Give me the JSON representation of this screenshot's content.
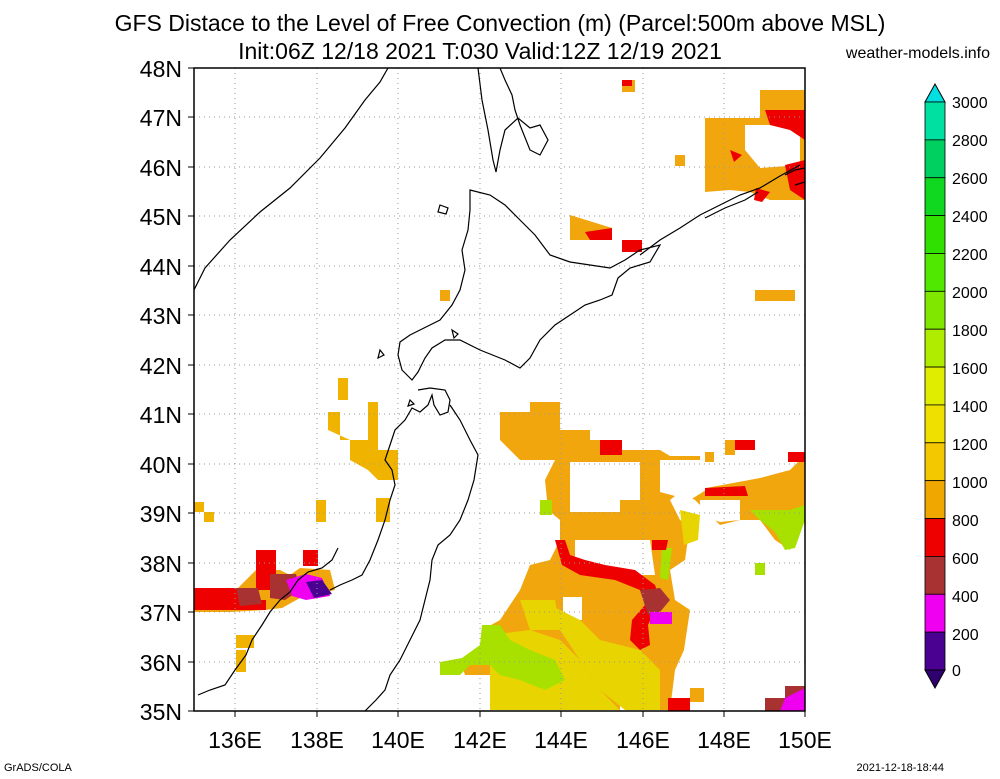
{
  "header": {
    "title": "GFS Distace to the Level of Free Convection (m) (Parcel:500m above MSL)",
    "subtitle": "Init:06Z 12/18 2021 T:030 Valid:12Z 12/19 2021",
    "site": "weather-models.info"
  },
  "footer": {
    "left": "GrADS/COLA",
    "right": "2021-12-18-18:44"
  },
  "map": {
    "lon_labels": [
      "136E",
      "138E",
      "140E",
      "142E",
      "144E",
      "146E",
      "148E",
      "150E"
    ],
    "lat_labels": [
      "48N",
      "47N",
      "46N",
      "45N",
      "44N",
      "43N",
      "42N",
      "41N",
      "40N",
      "39N",
      "38N",
      "37N",
      "36N",
      "35N"
    ],
    "extent": {
      "lon": [
        135,
        150
      ],
      "lat": [
        35,
        48
      ]
    }
  },
  "colorbar": {
    "levels": [
      "3000",
      "2800",
      "2600",
      "2400",
      "2200",
      "2000",
      "1800",
      "1600",
      "1400",
      "1200",
      "1000",
      "800",
      "600",
      "400",
      "200",
      "0"
    ],
    "colors": [
      "#00d8c8",
      "#00e0a0",
      "#00d060",
      "#10d820",
      "#30e000",
      "#50e800",
      "#80e800",
      "#b0ec00",
      "#e0ec00",
      "#f0e000",
      "#f4c800",
      "#f0a800",
      "#ee0000",
      "#a83232",
      "#f000f0",
      "#4a0090"
    ]
  },
  "colors": {
    "orange": "#f2a60e",
    "amber": "#f0b400",
    "yellow": "#e8d400",
    "lightgreen": "#a8e000",
    "red": "#ee0000",
    "brown": "#a83232",
    "magenta": "#f000f0",
    "purple": "#4a0090"
  }
}
